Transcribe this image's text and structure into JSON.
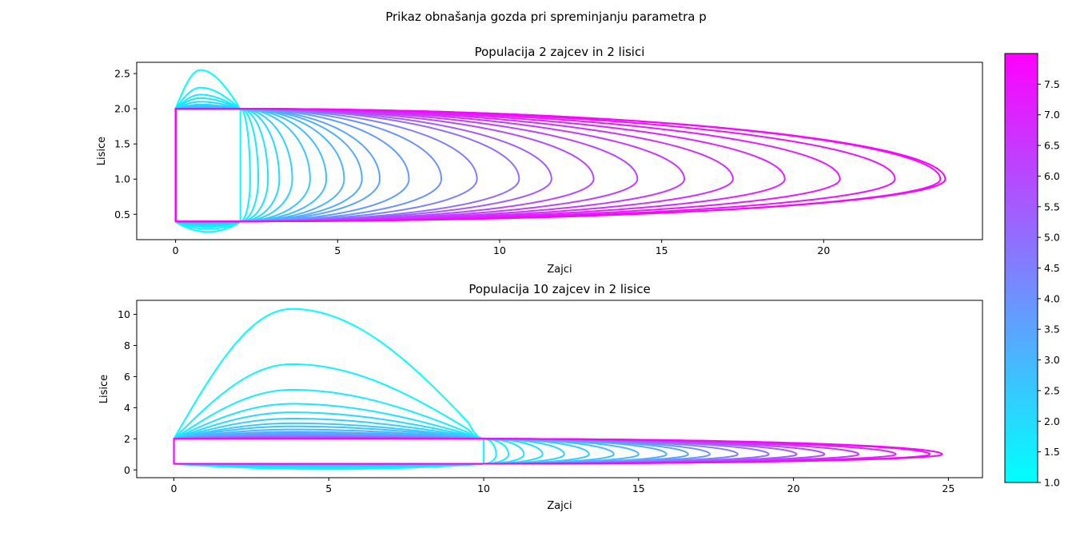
{
  "figure": {
    "suptitle": "Prikaz obnašanja gozda pri spreminjanju parametra p"
  },
  "colorbar": {
    "colormap": "cool",
    "range": [
      1.0,
      8.0
    ],
    "ticks": [
      "1.0",
      "1.5",
      "2.0",
      "2.5",
      "3.0",
      "3.5",
      "4.0",
      "4.5",
      "5.0",
      "5.5",
      "6.0",
      "6.5",
      "7.0",
      "7.5"
    ],
    "color_min": "#00ffff",
    "color_max": "#ff00ff"
  },
  "chart_data": [
    {
      "type": "line",
      "title": "Populacija 2 zajcev in 2 lisici",
      "xlabel": "Zajci",
      "ylabel": "Lisice",
      "xlim": [
        -1.2,
        24.9
      ],
      "ylim": [
        0.14,
        2.66
      ],
      "xticks": [
        0,
        5,
        10,
        15,
        20
      ],
      "yticks": [
        "0.5",
        "1.0",
        "1.5",
        "2.0",
        "2.5"
      ],
      "xtick_labels": [
        "0",
        "5",
        "10",
        "15",
        "20"
      ],
      "curve_model": {
        "x_left": 0.0,
        "x_switch": 2.0,
        "y_top": 2.0,
        "y_bottom": 0.4,
        "y_mid": 1.0
      },
      "series": [
        {
          "p": 1.0,
          "x_max": 2.0,
          "y_max": 2.55,
          "y_min": 0.25
        },
        {
          "p": 1.25,
          "x_max": 2.3,
          "y_max": 2.3,
          "y_min": 0.29
        },
        {
          "p": 1.5,
          "x_max": 2.55,
          "y_max": 2.2,
          "y_min": 0.32
        },
        {
          "p": 1.75,
          "x_max": 2.85,
          "y_max": 2.15,
          "y_min": 0.34
        },
        {
          "p": 2.0,
          "x_max": 3.2,
          "y_max": 2.1,
          "y_min": 0.36
        },
        {
          "p": 2.25,
          "x_max": 3.6,
          "y_max": 2.06,
          "y_min": 0.37
        },
        {
          "p": 2.5,
          "x_max": 4.15,
          "y_max": 2.04,
          "y_min": 0.38
        },
        {
          "p": 2.75,
          "x_max": 4.65,
          "y_max": 2.02,
          "y_min": 0.39
        },
        {
          "p": 3.0,
          "x_max": 5.2,
          "y_max": 2.01,
          "y_min": 0.395
        },
        {
          "p": 3.25,
          "x_max": 5.75,
          "y_max": 2.0,
          "y_min": 0.4
        },
        {
          "p": 3.5,
          "x_max": 6.3,
          "y_max": 2.0,
          "y_min": 0.4
        },
        {
          "p": 3.75,
          "x_max": 7.2,
          "y_max": 2.0,
          "y_min": 0.4
        },
        {
          "p": 4.0,
          "x_max": 8.2,
          "y_max": 2.0,
          "y_min": 0.4
        },
        {
          "p": 4.5,
          "x_max": 9.3,
          "y_max": 2.0,
          "y_min": 0.4
        },
        {
          "p": 5.0,
          "x_max": 10.6,
          "y_max": 2.0,
          "y_min": 0.4
        },
        {
          "p": 5.5,
          "x_max": 11.6,
          "y_max": 2.0,
          "y_min": 0.4
        },
        {
          "p": 6.0,
          "x_max": 12.9,
          "y_max": 2.0,
          "y_min": 0.4
        },
        {
          "p": 6.25,
          "x_max": 14.25,
          "y_max": 2.0,
          "y_min": 0.4
        },
        {
          "p": 6.5,
          "x_max": 15.7,
          "y_max": 2.0,
          "y_min": 0.4
        },
        {
          "p": 6.75,
          "x_max": 17.2,
          "y_max": 2.0,
          "y_min": 0.4
        },
        {
          "p": 7.0,
          "x_max": 18.8,
          "y_max": 2.0,
          "y_min": 0.4
        },
        {
          "p": 7.25,
          "x_max": 20.5,
          "y_max": 2.0,
          "y_min": 0.4
        },
        {
          "p": 7.5,
          "x_max": 22.2,
          "y_max": 2.0,
          "y_min": 0.4
        },
        {
          "p": 7.75,
          "x_max": 23.6,
          "y_max": 2.0,
          "y_min": 0.4
        },
        {
          "p": 7.9,
          "x_max": 23.75,
          "y_max": 2.0,
          "y_min": 0.4
        }
      ]
    },
    {
      "type": "line",
      "title": "Populacija 10 zajcev in 2 lisice",
      "xlabel": "Zajci",
      "ylabel": "Lisice",
      "xlim": [
        -1.2,
        26.1
      ],
      "ylim": [
        -0.5,
        10.9
      ],
      "xticks": [
        0,
        5,
        10,
        15,
        20,
        25
      ],
      "yticks": [
        "0",
        "2",
        "4",
        "6",
        "8",
        "10"
      ],
      "xtick_labels": [
        "0",
        "5",
        "10",
        "15",
        "20",
        "25"
      ],
      "curve_model": {
        "x_left": 0.0,
        "x_switch": 10.0,
        "y_top": 2.0,
        "y_bottom": 0.4,
        "y_mid": 1.0
      },
      "series": [
        {
          "p": 1.0,
          "x_max": 10.0,
          "y_max": 10.35,
          "y_min": 0.05
        },
        {
          "p": 1.25,
          "x_max": 10.4,
          "y_max": 6.8,
          "y_min": 0.1
        },
        {
          "p": 1.5,
          "x_max": 10.8,
          "y_max": 5.15,
          "y_min": 0.15
        },
        {
          "p": 1.75,
          "x_max": 11.3,
          "y_max": 4.25,
          "y_min": 0.2
        },
        {
          "p": 2.0,
          "x_max": 11.9,
          "y_max": 3.7,
          "y_min": 0.24
        },
        {
          "p": 2.25,
          "x_max": 12.6,
          "y_max": 3.3,
          "y_min": 0.27
        },
        {
          "p": 2.5,
          "x_max": 13.4,
          "y_max": 3.0,
          "y_min": 0.3
        },
        {
          "p": 2.75,
          "x_max": 14.2,
          "y_max": 2.8,
          "y_min": 0.32
        },
        {
          "p": 3.0,
          "x_max": 15.0,
          "y_max": 2.6,
          "y_min": 0.34
        },
        {
          "p": 3.25,
          "x_max": 15.9,
          "y_max": 2.45,
          "y_min": 0.35
        },
        {
          "p": 3.5,
          "x_max": 16.6,
          "y_max": 2.35,
          "y_min": 0.36
        },
        {
          "p": 4.0,
          "x_max": 17.3,
          "y_max": 2.25,
          "y_min": 0.37
        },
        {
          "p": 4.5,
          "x_max": 18.2,
          "y_max": 2.18,
          "y_min": 0.38
        },
        {
          "p": 5.0,
          "x_max": 19.2,
          "y_max": 2.12,
          "y_min": 0.39
        },
        {
          "p": 5.5,
          "x_max": 20.1,
          "y_max": 2.08,
          "y_min": 0.39
        },
        {
          "p": 6.0,
          "x_max": 21.0,
          "y_max": 2.05,
          "y_min": 0.4
        },
        {
          "p": 6.5,
          "x_max": 22.1,
          "y_max": 2.03,
          "y_min": 0.4
        },
        {
          "p": 7.0,
          "x_max": 23.3,
          "y_max": 2.02,
          "y_min": 0.4
        },
        {
          "p": 7.5,
          "x_max": 24.4,
          "y_max": 2.01,
          "y_min": 0.4
        },
        {
          "p": 7.9,
          "x_max": 24.8,
          "y_max": 2.0,
          "y_min": 0.4
        }
      ]
    }
  ]
}
